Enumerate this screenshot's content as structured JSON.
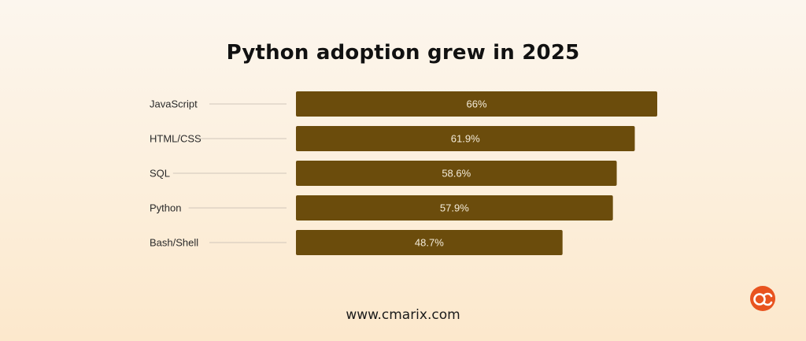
{
  "chart_data": {
    "type": "bar",
    "orientation": "horizontal",
    "title": "Python adoption grew in 2025",
    "categories": [
      "JavaScript",
      "HTML/CSS",
      "SQL",
      "Python",
      "Bash/Shell"
    ],
    "values": [
      66,
      61.9,
      58.6,
      57.9,
      48.7
    ],
    "value_labels": [
      "66%",
      "61.9%",
      "58.6%",
      "57.9%",
      "48.7%"
    ],
    "unit": "%",
    "xlabel": "",
    "ylabel": "",
    "xlim": [
      0,
      66
    ],
    "grid": false,
    "legend": "none"
  },
  "colors": {
    "bar": "#6b4c0c",
    "leader_line": "#cfc6ba"
  },
  "footer": {
    "url": "www.cmarix.com"
  },
  "logo": {
    "icon": "cmarix-logo-icon",
    "color": "#e8531f"
  }
}
